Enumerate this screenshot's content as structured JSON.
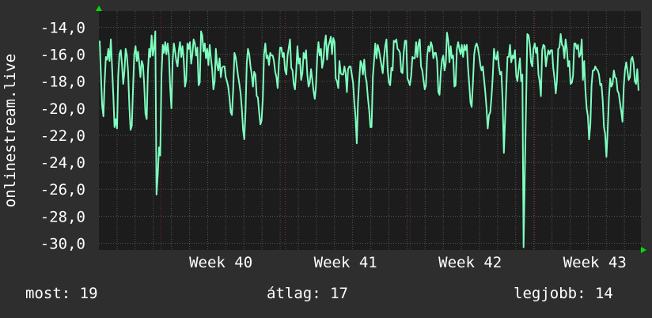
{
  "chart_data": {
    "type": "line",
    "ylabel": "onlinestream.live",
    "ylim": [
      -30.5,
      -12.8
    ],
    "yticks": [
      "-14,0",
      "-16,0",
      "-18,0",
      "-20,0",
      "-22,0",
      "-24,0",
      "-26,0",
      "-28,0",
      "-30,0"
    ],
    "ytick_values": [
      -14,
      -16,
      -18,
      -20,
      -22,
      -24,
      -26,
      -28,
      -30
    ],
    "xticks": [
      "Week 40",
      "Week 41",
      "Week 42",
      "Week 43"
    ],
    "xtick_positions": [
      0.225,
      0.455,
      0.685,
      0.915
    ],
    "grid": true,
    "colors": {
      "line": "#7fffc0",
      "background": "#1c1c1c",
      "grid": "#555555",
      "major_grid": "#7a2a2a",
      "axis_arrow": "#00dd00"
    },
    "series": [
      {
        "values": [
          -15.0,
          -17.6,
          -19.8,
          -20.6,
          -18.1,
          -16.2,
          -16.4,
          -15.6,
          -16.5,
          -14.9,
          -16.9,
          -19.0,
          -21.4,
          -20.8,
          -21.5,
          -17.6,
          -16.0,
          -15.7,
          -16.7,
          -18.2,
          -17.3,
          -15.6,
          -16.1,
          -17.3,
          -19.9,
          -21.6,
          -21.3,
          -18.4,
          -16.0,
          -15.4,
          -16.5,
          -15.8,
          -16.7,
          -17.7,
          -16.5,
          -16.8,
          -18.2,
          -20.4,
          -20.8,
          -17.3,
          -15.6,
          -16.2,
          -14.6,
          -16.1,
          -15.5,
          -14.3,
          -26.4,
          -24.9,
          -22.9,
          -23.5,
          -17.5,
          -15.3,
          -15.9,
          -15.1,
          -16.0,
          -15.2,
          -16.1,
          -18.4,
          -20.0,
          -16.5,
          -15.2,
          -15.8,
          -16.5,
          -16.9,
          -15.7,
          -15.1,
          -16.2,
          -15.4,
          -16.4,
          -18.4,
          -17.9,
          -15.2,
          -15.6,
          -15.1,
          -16.7,
          -16.0,
          -14.9,
          -15.2,
          -16.1,
          -15.5,
          -18.3,
          -18.1,
          -14.3,
          -14.6,
          -15.8,
          -15.2,
          -16.3,
          -15.6,
          -16.8,
          -15.3,
          -16.3,
          -17.1,
          -18.6,
          -18.0,
          -15.6,
          -16.8,
          -17.2,
          -16.3,
          -17.7,
          -17.0,
          -16.9,
          -16.9,
          -17.7,
          -18.0,
          -18.4,
          -19.2,
          -20.3,
          -20.5,
          -18.6,
          -15.9,
          -16.2,
          -16.9,
          -17.6,
          -18.2,
          -18.9,
          -20.0,
          -21.6,
          -22.3,
          -20.2,
          -16.6,
          -15.6,
          -16.0,
          -16.9,
          -17.5,
          -18.4,
          -17.3,
          -17.5,
          -19.1,
          -19.2,
          -20.3,
          -21.2,
          -20.9,
          -19.2,
          -16.0,
          -15.2,
          -16.3,
          -16.1,
          -16.8,
          -15.9,
          -16.1,
          -16.1,
          -16.5,
          -17.3,
          -17.7,
          -18.5,
          -16.6,
          -15.5,
          -15.5,
          -16.2,
          -15.9,
          -17.2,
          -17.5,
          -16.1,
          -15.5,
          -14.9,
          -17.0,
          -17.2,
          -18.2,
          -18.6,
          -17.3,
          -15.4,
          -16.7,
          -16.3,
          -17.9,
          -17.4,
          -15.9,
          -16.3,
          -15.7,
          -17.5,
          -18.4,
          -18.1,
          -17.1,
          -17.9,
          -18.7,
          -19.3,
          -18.4,
          -16.2,
          -15.1,
          -16.1,
          -15.6,
          -17.0,
          -16.5,
          -15.2,
          -14.6,
          -16.4,
          -15.4,
          -15.1,
          -14.7,
          -16.0,
          -14.8,
          -15.1,
          -17.8,
          -18.0,
          -18.5,
          -16.5,
          -17.4,
          -17.5,
          -17.5,
          -16.9,
          -17.4,
          -18.8,
          -17.1,
          -16.9,
          -16.9,
          -17.5,
          -18.1,
          -19.6,
          -20.6,
          -22.6,
          -19.6,
          -17.9,
          -16.5,
          -16.7,
          -17.5,
          -16.4,
          -17.6,
          -18.1,
          -19.2,
          -20.1,
          -21.4,
          -21.4,
          -17.7,
          -16.5,
          -15.2,
          -16.3,
          -15.3,
          -15.7,
          -16.3,
          -16.8,
          -17.4,
          -16.3,
          -15.4,
          -14.9,
          -17.1,
          -18.1,
          -18.3,
          -17.0,
          -17.2,
          -15.0,
          -15.1,
          -14.9,
          -15.6,
          -15.7,
          -15.9,
          -17.3,
          -17.4,
          -15.9,
          -15.0,
          -15.0,
          -17.8,
          -18.0,
          -18.3,
          -17.6,
          -16.2,
          -16.3,
          -16.3,
          -15.1,
          -16.2,
          -15.2,
          -14.9,
          -16.9,
          -17.2,
          -17.9,
          -18.6,
          -18.3,
          -16.1,
          -15.4,
          -15.8,
          -15.1,
          -15.4,
          -16.3,
          -15.9,
          -15.9,
          -16.5,
          -18.8,
          -19.0,
          -17.3,
          -16.4,
          -16.1,
          -17.2,
          -16.7,
          -14.4,
          -15.0,
          -16.6,
          -15.4,
          -16.3,
          -16.1,
          -18.4,
          -18.3,
          -15.6,
          -15.1,
          -15.6,
          -16.0,
          -15.3,
          -16.2,
          -15.3,
          -15.7,
          -15.3,
          -17.0,
          -18.2,
          -19.6,
          -19.9,
          -18.1,
          -16.0,
          -15.4,
          -15.2,
          -15.5,
          -16.1,
          -16.8,
          -17.2,
          -16.9,
          -17.9,
          -18.8,
          -20.0,
          -21.5,
          -20.5,
          -20.3,
          -19.2,
          -17.7,
          -15.6,
          -16.3,
          -16.4,
          -15.8,
          -16.9,
          -17.5,
          -17.3,
          -19.4,
          -23.3,
          -20.9,
          -18.4,
          -16.2,
          -16.2,
          -15.3,
          -16.6,
          -16.1,
          -16.3,
          -15.7,
          -17.6,
          -18.0,
          -17.1,
          -16.3,
          -18.0,
          -17.5,
          -30.3,
          -24.7,
          -19.6,
          -14.5,
          -14.6,
          -15.3,
          -16.6,
          -16.9,
          -15.6,
          -15.2,
          -15.9,
          -15.5,
          -17.5,
          -18.0,
          -19.1,
          -15.7,
          -15.3,
          -15.4,
          -16.9,
          -16.2,
          -15.7,
          -16.0,
          -15.7,
          -15.7,
          -17.0,
          -17.8,
          -18.9,
          -17.9,
          -15.6,
          -15.5,
          -14.5,
          -15.3,
          -15.4,
          -16.3,
          -14.9,
          -15.6,
          -16.9,
          -16.5,
          -18.2,
          -18.1,
          -17.6,
          -15.2,
          -15.2,
          -15.6,
          -15.3,
          -16.2,
          -16.0,
          -14.9,
          -17.9,
          -16.5,
          -18.6,
          -20.0,
          -20.6,
          -22.3,
          -21.2,
          -18.3,
          -17.2,
          -17.2,
          -16.9,
          -17.1,
          -17.2,
          -17.5,
          -18.3,
          -18.2,
          -19.4,
          -21.4,
          -21.9,
          -23.6,
          -21.6,
          -19.3,
          -17.8,
          -18.4,
          -18.2,
          -17.2,
          -17.7,
          -17.8,
          -18.7,
          -18.9,
          -19.6,
          -20.2,
          -21.0,
          -18.4,
          -17.2,
          -16.6,
          -17.2,
          -17.9,
          -17.7,
          -16.4,
          -16.2,
          -16.7,
          -18.0,
          -18.2,
          -17.1,
          -18.7
        ]
      }
    ]
  },
  "footer": {
    "now": "most: 19",
    "avg": "átlag: 17",
    "max": "legjobb: 14"
  }
}
